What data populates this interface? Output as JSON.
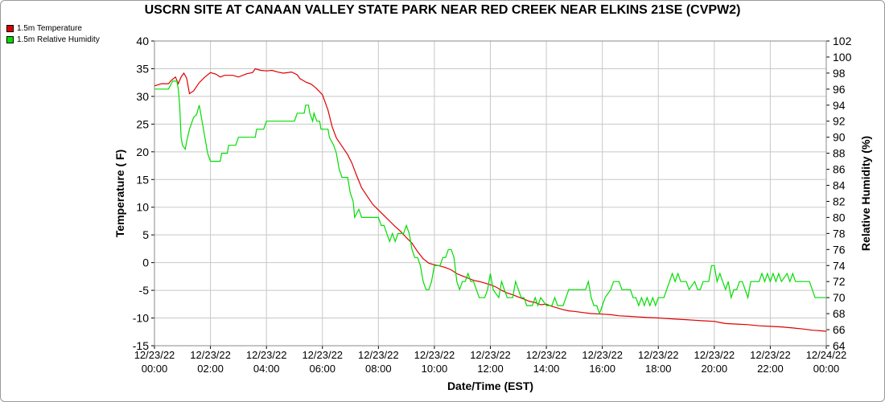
{
  "chart_data": {
    "type": "line",
    "title": "USCRN SITE AT CANAAN VALLEY STATE PARK NEAR RED CREEK NEAR ELKINS 21SE (CVPW2)",
    "xlabel": "Date/Time (EST)",
    "ylabel_left": "Temperature ( F)",
    "ylabel_right": "Relative Humidity (%)",
    "x_ticks": [
      [
        "12/23/22",
        "00:00"
      ],
      [
        "12/23/22",
        "02:00"
      ],
      [
        "12/23/22",
        "04:00"
      ],
      [
        "12/23/22",
        "06:00"
      ],
      [
        "12/23/22",
        "08:00"
      ],
      [
        "12/23/22",
        "10:00"
      ],
      [
        "12/23/22",
        "12:00"
      ],
      [
        "12/23/22",
        "14:00"
      ],
      [
        "12/23/22",
        "16:00"
      ],
      [
        "12/23/22",
        "18:00"
      ],
      [
        "12/23/22",
        "20:00"
      ],
      [
        "12/23/22",
        "22:00"
      ],
      [
        "12/24/22",
        "00:00"
      ]
    ],
    "xlim_hours": [
      0,
      24
    ],
    "ylim_left": [
      -15,
      40
    ],
    "yticks_left": [
      -15,
      -10,
      -5,
      0,
      5,
      10,
      15,
      20,
      25,
      30,
      35,
      40
    ],
    "ylim_right": [
      64,
      102
    ],
    "yticks_right": [
      64,
      66,
      68,
      70,
      72,
      74,
      76,
      78,
      80,
      82,
      84,
      86,
      88,
      90,
      92,
      94,
      96,
      98,
      100,
      102
    ],
    "grid": true,
    "legend_position": "top-left",
    "series": [
      {
        "name": "1.5m Temperature",
        "axis": "left",
        "color": "#dd0000",
        "points": [
          [
            0.0,
            31.9
          ],
          [
            0.25,
            32.3
          ],
          [
            0.5,
            32.3
          ],
          [
            0.6,
            32.9
          ],
          [
            0.75,
            33.5
          ],
          [
            0.85,
            32.3
          ],
          [
            0.95,
            33.5
          ],
          [
            1.05,
            34.2
          ],
          [
            1.15,
            33.3
          ],
          [
            1.25,
            30.5
          ],
          [
            1.4,
            31.0
          ],
          [
            1.6,
            32.5
          ],
          [
            1.8,
            33.5
          ],
          [
            2.0,
            34.3
          ],
          [
            2.2,
            34.0
          ],
          [
            2.35,
            33.5
          ],
          [
            2.5,
            33.8
          ],
          [
            2.8,
            33.8
          ],
          [
            3.0,
            33.5
          ],
          [
            3.3,
            34.1
          ],
          [
            3.5,
            34.3
          ],
          [
            3.6,
            35.0
          ],
          [
            3.8,
            34.7
          ],
          [
            4.0,
            34.6
          ],
          [
            4.2,
            34.7
          ],
          [
            4.4,
            34.4
          ],
          [
            4.6,
            34.2
          ],
          [
            4.9,
            34.4
          ],
          [
            5.1,
            33.9
          ],
          [
            5.2,
            33.2
          ],
          [
            5.3,
            32.9
          ],
          [
            5.4,
            32.6
          ],
          [
            5.6,
            32.2
          ],
          [
            5.75,
            31.6
          ],
          [
            5.85,
            31.1
          ],
          [
            6.0,
            30.3
          ],
          [
            6.2,
            27.5
          ],
          [
            6.35,
            24.5
          ],
          [
            6.5,
            22.5
          ],
          [
            6.7,
            21.0
          ],
          [
            6.9,
            19.5
          ],
          [
            7.05,
            18.0
          ],
          [
            7.2,
            16.0
          ],
          [
            7.4,
            13.5
          ],
          [
            7.6,
            12.0
          ],
          [
            7.8,
            10.5
          ],
          [
            8.0,
            9.5
          ],
          [
            8.2,
            8.5
          ],
          [
            8.4,
            7.5
          ],
          [
            8.6,
            6.5
          ],
          [
            8.8,
            5.6
          ],
          [
            9.0,
            4.5
          ],
          [
            9.2,
            3.5
          ],
          [
            9.4,
            2.0
          ],
          [
            9.6,
            0.7
          ],
          [
            9.8,
            -0.1
          ],
          [
            10.0,
            -0.4
          ],
          [
            10.2,
            -0.6
          ],
          [
            10.4,
            -0.9
          ],
          [
            10.6,
            -1.3
          ],
          [
            10.8,
            -2.0
          ],
          [
            11.0,
            -2.4
          ],
          [
            11.2,
            -2.8
          ],
          [
            11.4,
            -3.2
          ],
          [
            11.6,
            -3.4
          ],
          [
            11.8,
            -3.7
          ],
          [
            12.0,
            -4.0
          ],
          [
            12.2,
            -4.4
          ],
          [
            12.4,
            -5.0
          ],
          [
            12.6,
            -5.5
          ],
          [
            12.8,
            -5.8
          ],
          [
            13.0,
            -6.2
          ],
          [
            13.2,
            -6.6
          ],
          [
            13.4,
            -7.0
          ],
          [
            13.6,
            -7.2
          ],
          [
            13.8,
            -7.6
          ],
          [
            14.0,
            -7.5
          ],
          [
            14.2,
            -7.9
          ],
          [
            14.4,
            -8.2
          ],
          [
            14.6,
            -8.5
          ],
          [
            14.8,
            -8.7
          ],
          [
            15.0,
            -8.8
          ],
          [
            15.3,
            -9.0
          ],
          [
            15.6,
            -9.2
          ],
          [
            16.0,
            -9.3
          ],
          [
            16.3,
            -9.4
          ],
          [
            16.6,
            -9.6
          ],
          [
            17.0,
            -9.7
          ],
          [
            17.3,
            -9.8
          ],
          [
            17.6,
            -9.9
          ],
          [
            18.0,
            -10.0
          ],
          [
            18.3,
            -10.1
          ],
          [
            18.6,
            -10.2
          ],
          [
            19.0,
            -10.3
          ],
          [
            19.3,
            -10.4
          ],
          [
            19.6,
            -10.5
          ],
          [
            20.0,
            -10.6
          ],
          [
            20.2,
            -10.8
          ],
          [
            20.4,
            -11.0
          ],
          [
            20.8,
            -11.1
          ],
          [
            21.2,
            -11.2
          ],
          [
            21.6,
            -11.4
          ],
          [
            22.0,
            -11.5
          ],
          [
            22.4,
            -11.6
          ],
          [
            22.8,
            -11.8
          ],
          [
            23.2,
            -12.0
          ],
          [
            23.5,
            -12.2
          ],
          [
            23.8,
            -12.3
          ],
          [
            24.0,
            -12.4
          ]
        ]
      },
      {
        "name": "1.5m Relative Humidity",
        "axis": "right",
        "color": "#00dd00",
        "points": [
          [
            0.0,
            96.0
          ],
          [
            0.4,
            96.0
          ],
          [
            0.5,
            96.0
          ],
          [
            0.65,
            97.0
          ],
          [
            0.8,
            97.0
          ],
          [
            0.85,
            96.0
          ],
          [
            0.9,
            94.0
          ],
          [
            0.95,
            90.0
          ],
          [
            1.0,
            89.0
          ],
          [
            1.1,
            88.5
          ],
          [
            1.15,
            89.5
          ],
          [
            1.25,
            91.0
          ],
          [
            1.4,
            92.5
          ],
          [
            1.5,
            92.8
          ],
          [
            1.6,
            94.0
          ],
          [
            1.7,
            92.0
          ],
          [
            1.8,
            90.0
          ],
          [
            1.9,
            88.0
          ],
          [
            2.0,
            87.0
          ],
          [
            2.2,
            87.0
          ],
          [
            2.35,
            87.0
          ],
          [
            2.4,
            88.0
          ],
          [
            2.6,
            88.0
          ],
          [
            2.65,
            89.0
          ],
          [
            2.9,
            89.0
          ],
          [
            3.0,
            90.0
          ],
          [
            3.6,
            90.0
          ],
          [
            3.65,
            91.0
          ],
          [
            3.9,
            91.0
          ],
          [
            4.0,
            92.0
          ],
          [
            5.0,
            92.0
          ],
          [
            5.1,
            93.0
          ],
          [
            5.35,
            93.0
          ],
          [
            5.4,
            94.0
          ],
          [
            5.5,
            94.0
          ],
          [
            5.55,
            93.0
          ],
          [
            5.65,
            92.0
          ],
          [
            5.7,
            93.0
          ],
          [
            5.8,
            92.0
          ],
          [
            5.9,
            92.0
          ],
          [
            5.95,
            91.0
          ],
          [
            6.2,
            91.0
          ],
          [
            6.25,
            90.0
          ],
          [
            6.4,
            89.0
          ],
          [
            6.5,
            88.0
          ],
          [
            6.6,
            86.0
          ],
          [
            6.7,
            85.0
          ],
          [
            6.9,
            85.0
          ],
          [
            7.0,
            83.0
          ],
          [
            7.1,
            82.0
          ],
          [
            7.15,
            80.0
          ],
          [
            7.3,
            81.0
          ],
          [
            7.4,
            80.0
          ],
          [
            8.0,
            80.0
          ],
          [
            8.1,
            79.0
          ],
          [
            8.2,
            79.0
          ],
          [
            8.3,
            78.0
          ],
          [
            8.4,
            77.0
          ],
          [
            8.5,
            78.0
          ],
          [
            8.6,
            77.0
          ],
          [
            8.7,
            78.0
          ],
          [
            8.9,
            78.0
          ],
          [
            9.0,
            79.0
          ],
          [
            9.1,
            78.0
          ],
          [
            9.2,
            76.0
          ],
          [
            9.3,
            75.0
          ],
          [
            9.4,
            75.0
          ],
          [
            9.5,
            74.0
          ],
          [
            9.6,
            72.0
          ],
          [
            9.7,
            71.0
          ],
          [
            9.8,
            71.0
          ],
          [
            9.9,
            72.0
          ],
          [
            10.0,
            74.0
          ],
          [
            10.2,
            74.0
          ],
          [
            10.3,
            75.0
          ],
          [
            10.4,
            75.0
          ],
          [
            10.5,
            76.0
          ],
          [
            10.6,
            76.0
          ],
          [
            10.7,
            75.0
          ],
          [
            10.8,
            72.0
          ],
          [
            10.9,
            71.0
          ],
          [
            11.0,
            72.0
          ],
          [
            11.1,
            72.0
          ],
          [
            11.2,
            73.0
          ],
          [
            11.3,
            72.0
          ],
          [
            11.4,
            72.0
          ],
          [
            11.5,
            71.0
          ],
          [
            11.6,
            70.0
          ],
          [
            11.8,
            70.0
          ],
          [
            11.9,
            71.0
          ],
          [
            12.0,
            73.0
          ],
          [
            12.1,
            71.0
          ],
          [
            12.3,
            70.0
          ],
          [
            12.4,
            72.0
          ],
          [
            12.5,
            71.0
          ],
          [
            12.6,
            70.0
          ],
          [
            12.8,
            70.0
          ],
          [
            12.9,
            72.0
          ],
          [
            13.0,
            71.0
          ],
          [
            13.1,
            70.0
          ],
          [
            13.2,
            70.0
          ],
          [
            13.3,
            69.0
          ],
          [
            13.5,
            69.0
          ],
          [
            13.6,
            70.0
          ],
          [
            13.7,
            69.0
          ],
          [
            13.8,
            70.0
          ],
          [
            14.0,
            69.0
          ],
          [
            14.2,
            69.0
          ],
          [
            14.3,
            70.0
          ],
          [
            14.4,
            69.0
          ],
          [
            14.6,
            69.0
          ],
          [
            14.7,
            70.0
          ],
          [
            14.8,
            71.0
          ],
          [
            15.4,
            71.0
          ],
          [
            15.5,
            72.0
          ],
          [
            15.6,
            70.0
          ],
          [
            15.7,
            69.0
          ],
          [
            15.8,
            69.0
          ],
          [
            15.9,
            68.0
          ],
          [
            16.0,
            69.0
          ],
          [
            16.1,
            70.0
          ],
          [
            16.3,
            71.0
          ],
          [
            16.4,
            72.0
          ],
          [
            16.6,
            72.0
          ],
          [
            16.7,
            71.0
          ],
          [
            17.0,
            71.0
          ],
          [
            17.1,
            70.0
          ],
          [
            17.2,
            70.0
          ],
          [
            17.3,
            69.0
          ],
          [
            17.4,
            70.0
          ],
          [
            17.5,
            69.0
          ],
          [
            17.6,
            70.0
          ],
          [
            17.7,
            69.0
          ],
          [
            17.8,
            70.0
          ],
          [
            17.9,
            69.0
          ],
          [
            18.0,
            70.0
          ],
          [
            18.1,
            70.0
          ],
          [
            18.2,
            70.0
          ],
          [
            18.3,
            71.0
          ],
          [
            18.4,
            72.0
          ],
          [
            18.5,
            73.0
          ],
          [
            18.6,
            72.0
          ],
          [
            18.7,
            73.0
          ],
          [
            18.8,
            72.0
          ],
          [
            19.0,
            72.0
          ],
          [
            19.1,
            71.0
          ],
          [
            19.3,
            72.0
          ],
          [
            19.4,
            71.0
          ],
          [
            19.5,
            71.0
          ],
          [
            19.6,
            72.0
          ],
          [
            19.8,
            72.0
          ],
          [
            19.9,
            74.0
          ],
          [
            20.0,
            74.0
          ],
          [
            20.1,
            72.0
          ],
          [
            20.2,
            73.0
          ],
          [
            20.3,
            72.0
          ],
          [
            20.4,
            71.0
          ],
          [
            20.5,
            72.0
          ],
          [
            20.6,
            70.0
          ],
          [
            20.7,
            71.0
          ],
          [
            20.8,
            71.0
          ],
          [
            20.9,
            72.0
          ],
          [
            21.0,
            72.0
          ],
          [
            21.1,
            71.0
          ],
          [
            21.2,
            70.0
          ],
          [
            21.3,
            72.0
          ],
          [
            21.6,
            72.0
          ],
          [
            21.7,
            73.0
          ],
          [
            21.8,
            72.0
          ],
          [
            21.9,
            73.0
          ],
          [
            22.0,
            72.0
          ],
          [
            22.1,
            73.0
          ],
          [
            22.2,
            72.0
          ],
          [
            22.3,
            73.0
          ],
          [
            22.4,
            72.0
          ],
          [
            22.6,
            73.0
          ],
          [
            22.7,
            72.0
          ],
          [
            22.8,
            73.0
          ],
          [
            22.9,
            72.0
          ],
          [
            23.0,
            72.0
          ],
          [
            23.1,
            72.0
          ],
          [
            23.2,
            72.0
          ],
          [
            23.3,
            72.0
          ],
          [
            23.4,
            72.0
          ],
          [
            23.5,
            71.0
          ],
          [
            23.6,
            70.0
          ],
          [
            24.0,
            70.0
          ]
        ]
      }
    ]
  }
}
